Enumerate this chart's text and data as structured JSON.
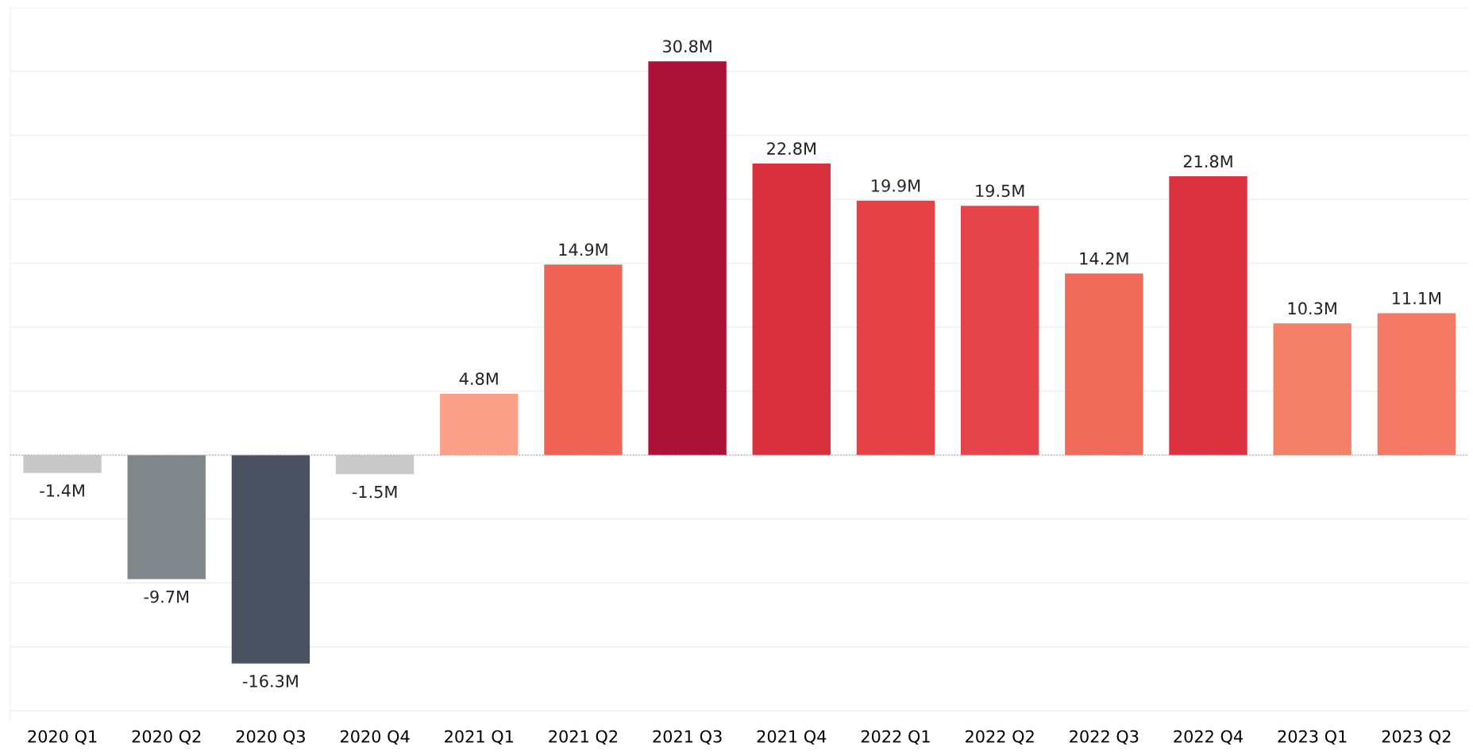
{
  "chart_data": {
    "type": "bar",
    "categories": [
      "2020 Q1",
      "2020 Q2",
      "2020 Q3",
      "2020 Q4",
      "2021 Q1",
      "2021 Q2",
      "2021 Q3",
      "2021 Q4",
      "2022 Q1",
      "2022 Q2",
      "2022 Q3",
      "2022 Q4",
      "2023 Q1",
      "2023 Q2"
    ],
    "values": [
      -1.4,
      -9.7,
      -16.3,
      -1.5,
      4.8,
      14.9,
      30.8,
      22.8,
      19.9,
      19.5,
      14.2,
      21.8,
      10.3,
      11.1
    ],
    "value_labels": [
      "-1.4M",
      "-9.7M",
      "-16.3M",
      "-1.5M",
      "4.8M",
      "14.9M",
      "30.8M",
      "22.8M",
      "19.9M",
      "19.5M",
      "14.2M",
      "21.8M",
      "10.3M",
      "11.1M"
    ],
    "colors": [
      "#c8c8c8",
      "#7f878b",
      "#4a5160",
      "#c8c9c8",
      "#fca08a",
      "#f06456",
      "#ac1237",
      "#d9303d",
      "#e44144",
      "#e5454a",
      "#f06a5a",
      "#dc3240",
      "#f58068",
      "#f47a66"
    ],
    "ylim": [
      -20.8,
      35
    ],
    "yticks": [
      {
        "value": -20,
        "label": null
      },
      {
        "value": -15,
        "label": null
      },
      {
        "value": -10,
        "label": null
      },
      {
        "value": -5,
        "label": null
      },
      {
        "value": 0,
        "label": null
      },
      {
        "value": 5,
        "label": null
      },
      {
        "value": 10,
        "label": null
      },
      {
        "value": 15,
        "label": null
      },
      {
        "value": 20,
        "label": null
      },
      {
        "value": 25,
        "label": null
      },
      {
        "value": 30,
        "label": null
      },
      {
        "value": 35,
        "label": null
      }
    ],
    "tick_labels": "x",
    "grid": "y",
    "ref_lines": [
      {
        "axis": "y",
        "value": 0,
        "color": "#b0b0b0",
        "line_style": "dotted"
      }
    ]
  }
}
